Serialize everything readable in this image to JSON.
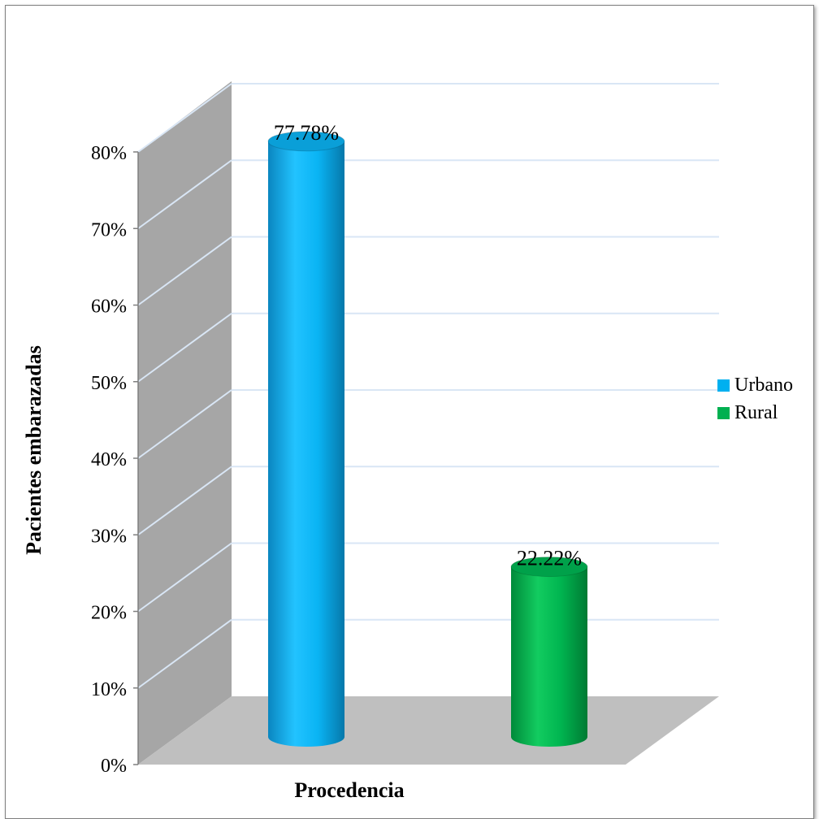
{
  "chart_data": {
    "type": "bar",
    "style": "3d-cylinder",
    "title": "",
    "xlabel": "Procedencia",
    "ylabel": "Pacientes embarazadas",
    "ylim": [
      0,
      0.8
    ],
    "yticks": [
      "0%",
      "10%",
      "20%",
      "30%",
      "40%",
      "50%",
      "60%",
      "70%",
      "80%"
    ],
    "grid": true,
    "legend_position": "right",
    "series": [
      {
        "name": "Urbano",
        "value": 77.78,
        "label": "77.78%",
        "color": "#00b0f0"
      },
      {
        "name": "Rural",
        "value": 22.22,
        "label": "22.22%",
        "color": "#00b050"
      }
    ]
  }
}
